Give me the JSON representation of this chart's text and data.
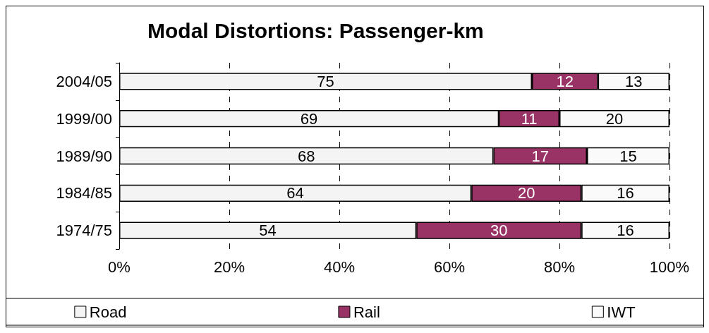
{
  "chart_data": {
    "type": "bar",
    "title": "Modal Distortions: Passenger-km",
    "orientation": "horizontal",
    "stacked": true,
    "categories": [
      "2004/05",
      "1999/00",
      "1989/90",
      "1984/85",
      "1974/75"
    ],
    "series": [
      {
        "name": "Road",
        "color": "#f4f4f4",
        "values": [
          75,
          69,
          68,
          64,
          54
        ]
      },
      {
        "name": "Rail",
        "color": "#993366",
        "values": [
          12,
          11,
          17,
          20,
          30
        ]
      },
      {
        "name": "IWT",
        "color": "#fafafa",
        "values": [
          13,
          20,
          15,
          16,
          16
        ]
      }
    ],
    "xlim": [
      0,
      100
    ],
    "xticks": [
      {
        "value": 0,
        "label": "0%"
      },
      {
        "value": 20,
        "label": "20%"
      },
      {
        "value": 40,
        "label": "40%"
      },
      {
        "value": 60,
        "label": "60%"
      },
      {
        "value": 80,
        "label": "80%"
      },
      {
        "value": 100,
        "label": "100%"
      }
    ],
    "grid": "x",
    "legend": "bottom",
    "data_labels": true
  }
}
